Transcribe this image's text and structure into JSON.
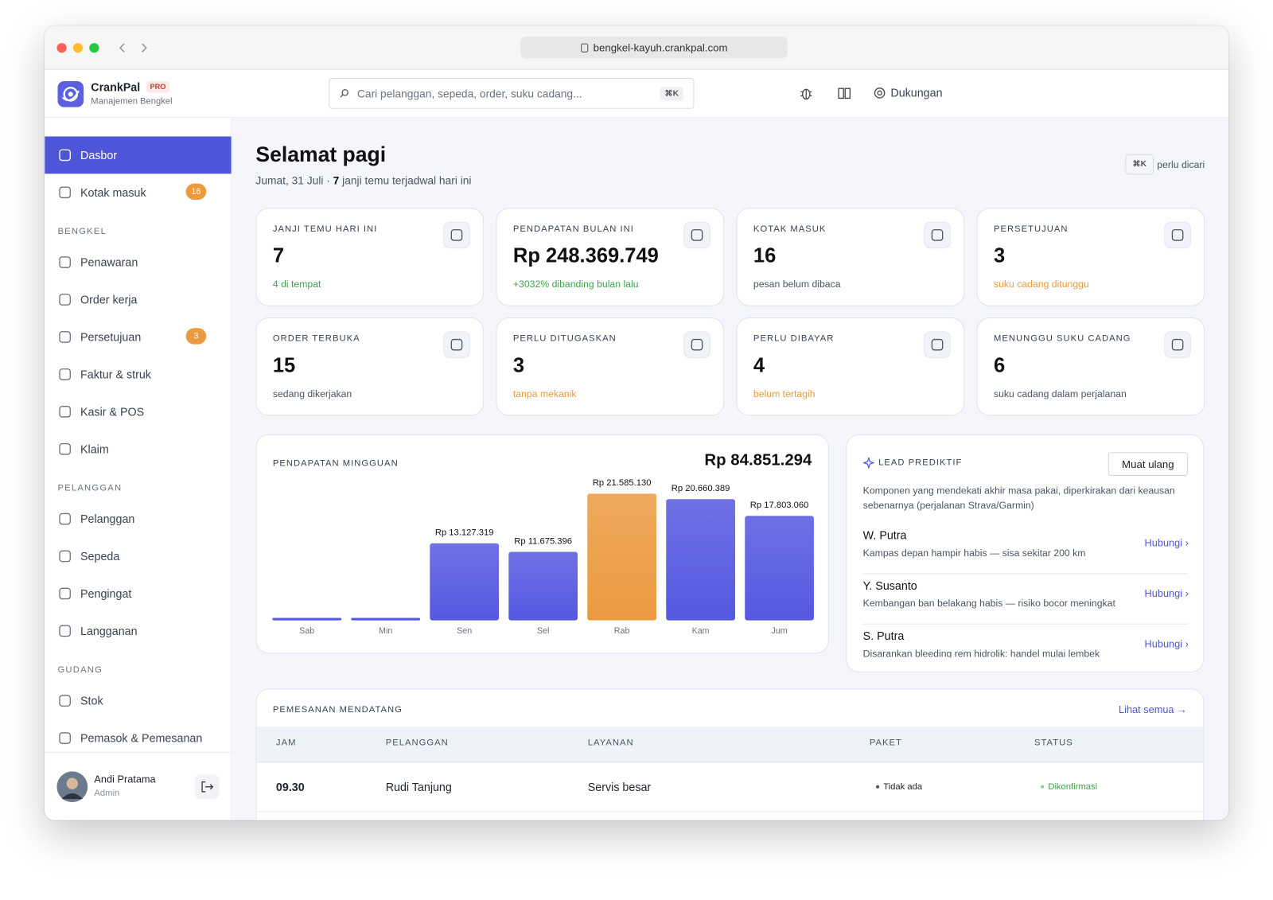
{
  "window": {
    "url": "bengkel-kayuh.crankpal.com"
  },
  "brand": {
    "name": "CrankPal",
    "badge": "PRO",
    "subtitle": "Manajemen Bengkel"
  },
  "search": {
    "placeholder": "Cari pelanggan, sepeda, order, suku cadang...",
    "shortcut": "⌘K"
  },
  "support": "Dukungan",
  "sidebar": {
    "groups": [
      {
        "items": [
          {
            "label": "Dasbor",
            "active": true
          },
          {
            "label": "Kotak masuk",
            "badge": 16
          }
        ]
      },
      {
        "title": "BENGKEL",
        "items": [
          {
            "label": "Penawaran"
          },
          {
            "label": "Order kerja"
          },
          {
            "label": "Persetujuan",
            "badge": 3
          },
          {
            "label": "Faktur & struk"
          },
          {
            "label": "Kasir & POS"
          },
          {
            "label": "Klaim"
          }
        ]
      },
      {
        "title": "PELANGGAN",
        "items": [
          {
            "label": "Pelanggan"
          },
          {
            "label": "Sepeda"
          },
          {
            "label": "Pengingat"
          },
          {
            "label": "Langganan"
          }
        ]
      },
      {
        "title": "GUDANG",
        "items": [
          {
            "label": "Stok"
          },
          {
            "label": "Pemasok & Pemesanan"
          }
        ]
      }
    ],
    "user": {
      "name": "Andi Pratama",
      "role": "Admin"
    }
  },
  "page": {
    "title": "Selamat pagi",
    "subtitle_prefix": "Jumat, 31 Juli · ",
    "subtitle_count": 7,
    "subtitle_suffix": " janji temu terjadwal hari ini",
    "shortcut": "⌘K",
    "shortcut_hint": "perlu dicari"
  },
  "stats": [
    {
      "label": "JANJI TEMU HARI INI",
      "value": "7",
      "note": "4 di tempat",
      "note_color": "#3fa34d"
    },
    {
      "label": "PENDAPATAN BULAN INI",
      "value": "Rp 248.369.749",
      "note": "+3032% dibanding bulan lalu",
      "note_color": "#3fa34d"
    },
    {
      "label": "KOTAK MASUK",
      "value": "16",
      "note": "pesan belum dibaca",
      "note_color": "#4b5563"
    },
    {
      "label": "PERSETUJUAN",
      "value": "3",
      "note": "suku cadang ditunggu",
      "note_color": "#ee9a3a"
    },
    {
      "label": "ORDER TERBUKA",
      "value": "15",
      "note": "sedang dikerjakan",
      "note_color": "#4b5563"
    },
    {
      "label": "PERLU DITUGASKAN",
      "value": "3",
      "note": "tanpa mekanik",
      "note_color": "#ee9a3a"
    },
    {
      "label": "PERLU DIBAYAR",
      "value": "4",
      "note": "belum tertagih",
      "note_color": "#ee9a3a"
    },
    {
      "label": "MENUNGGU SUKU CADANG",
      "value": "6",
      "note": "suku cadang dalam perjalanan",
      "note_color": "#4b5563"
    }
  ],
  "chart_data": {
    "type": "bar",
    "title": "PENDAPATAN MINGGUAN",
    "total": "Rp 84.851.294",
    "categories": [
      "Sab",
      "Min",
      "Sen",
      "Sel",
      "Rab",
      "Kam",
      "Jum"
    ],
    "values": [
      0,
      0,
      13127319,
      11675396,
      21585130,
      20660389,
      17803060
    ],
    "value_labels": [
      null,
      null,
      "Rp 13.127.319",
      "Rp 11.675.396",
      "Rp 21.585.130",
      "Rp 20.660.389",
      "Rp 17.803.060"
    ],
    "colors": [
      "#5558e0",
      "#5558e0",
      "#5558e0",
      "#5558e0",
      "#eb9a40",
      "#5558e0",
      "#5558e0"
    ]
  },
  "leads": {
    "title": "LEAD PREDIKTIF",
    "button": "Muat ulang",
    "description": "Komponen yang mendekati akhir masa pakai, diperkirakan dari keausan sebenarnya (perjalanan Strava/Garmin)",
    "items": [
      {
        "name": "W. Putra",
        "detail": "Kampas depan hampir habis — sisa sekitar 200 km",
        "action": "Hubungi ›"
      },
      {
        "name": "Y. Susanto",
        "detail": "Kembangan ban belakang habis — risiko bocor meningkat",
        "action": "Hubungi ›"
      },
      {
        "name": "S. Putra",
        "detail": "Disarankan bleeding rem hidrolik: handel mulai lembek",
        "action": "Hubungi ›"
      }
    ]
  },
  "bookings": {
    "title": "PEMESANAN MENDATANG",
    "link": "Lihat semua →",
    "columns": [
      "JAM",
      "PELANGGAN",
      "LAYANAN",
      "PAKET",
      "STATUS"
    ],
    "rows": [
      [
        "09.30",
        "Rudi Tanjung",
        "Servis besar",
        "Tidak ada",
        "Dikonfirmasi"
      ]
    ]
  }
}
